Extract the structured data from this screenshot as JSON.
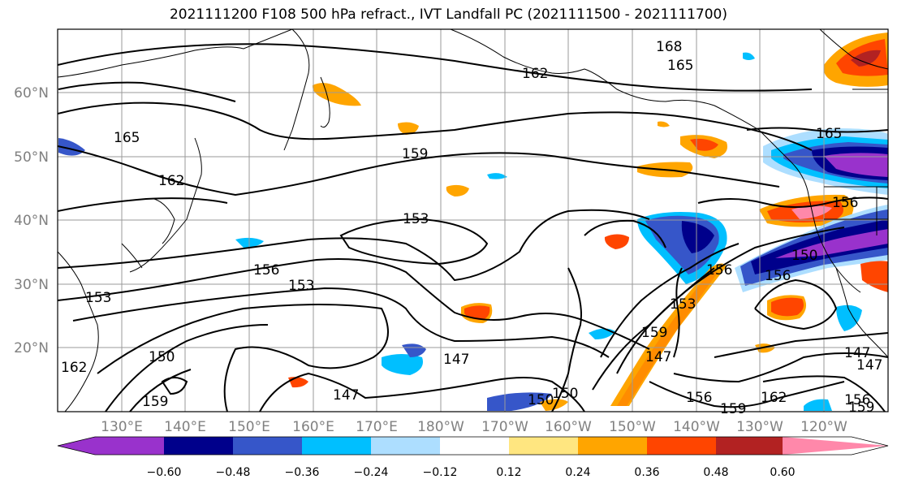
{
  "title": "2021111200 F108 500 hPa refract., IVT Landfall PC (2021111500 - 2021111700)",
  "lat_labels": [
    "60°N",
    "50°N",
    "40°N",
    "30°N",
    "20°N"
  ],
  "lon_labels": [
    "130°E",
    "140°E",
    "150°E",
    "160°E",
    "170°E",
    "180°W",
    "170°W",
    "160°W",
    "150°W",
    "140°W",
    "130°W",
    "120°W"
  ],
  "colorbar": {
    "colors": [
      "#9932CC",
      "#00008B",
      "#3656C9",
      "#00BFFF",
      "#ADDEFF",
      "#FFFFFF",
      "#FFE680",
      "#FFA500",
      "#FF4500",
      "#B22222",
      "#FF88AA"
    ],
    "ticks": [
      "−0.60",
      "−0.48",
      "−0.36",
      "−0.24",
      "−0.12",
      "0.12",
      "0.24",
      "0.36",
      "0.48",
      "0.60"
    ]
  },
  "contour_labels": [
    "168",
    "165",
    "162",
    "165",
    "162",
    "159",
    "153",
    "156",
    "153",
    "153",
    "150",
    "159",
    "147",
    "147",
    "150",
    "150",
    "156",
    "159",
    "147",
    "153",
    "156",
    "150",
    "147",
    "156",
    "159",
    "162",
    "165",
    "156",
    "156",
    "159",
    "162",
    "147"
  ]
}
